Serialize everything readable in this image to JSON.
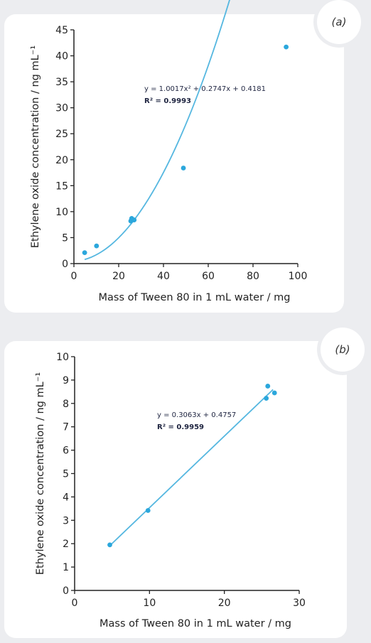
{
  "chart_data": [
    {
      "id": "a",
      "type": "scatter",
      "panel_label": "(a)",
      "xlabel": "Mass of Tween 80 in 1 mL water / mg",
      "ylabel": "Ethylene oxide concentration / ng mL⁻¹",
      "xlim": [
        0,
        100
      ],
      "ylim": [
        0,
        45
      ],
      "xticks": [
        0,
        20,
        40,
        60,
        80,
        100
      ],
      "yticks": [
        0,
        5,
        10,
        15,
        20,
        25,
        30,
        35,
        40,
        45
      ],
      "points": [
        {
          "x": 4.8,
          "y": 2.1
        },
        {
          "x": 10.1,
          "y": 3.4
        },
        {
          "x": 25.4,
          "y": 8.2
        },
        {
          "x": 25.8,
          "y": 8.7
        },
        {
          "x": 26.9,
          "y": 8.4
        },
        {
          "x": 48.9,
          "y": 18.4
        },
        {
          "x": 94.8,
          "y": 41.7
        }
      ],
      "fit": {
        "kind": "poly2",
        "coef": [
          1.0017,
          0.2747,
          0.4181
        ],
        "x_range": [
          4.8,
          94.8
        ],
        "x_scale": 0.1
      },
      "equation": "y = 1.0017x² + 0.2747x + 0.4181",
      "r2": "R² = 0.9993",
      "point_color": "#2ba7dc",
      "line_color": "#55b7e0"
    },
    {
      "id": "b",
      "type": "scatter",
      "panel_label": "(b)",
      "xlabel": "Mass of Tween 80 in 1 mL water / mg",
      "ylabel": "Ethylene oxide concentration / ng mL⁻¹",
      "xlim": [
        0,
        30
      ],
      "ylim": [
        0,
        10
      ],
      "xticks": [
        0,
        10,
        20,
        30
      ],
      "yticks": [
        0,
        1,
        2,
        3,
        4,
        5,
        6,
        7,
        8,
        9,
        10
      ],
      "points": [
        {
          "x": 4.7,
          "y": 1.95
        },
        {
          "x": 9.8,
          "y": 3.42
        },
        {
          "x": 25.6,
          "y": 8.22
        },
        {
          "x": 25.8,
          "y": 8.74
        },
        {
          "x": 26.7,
          "y": 8.45
        }
      ],
      "fit": {
        "kind": "linear",
        "coef": [
          0.3063,
          0.4757
        ],
        "x_range": [
          4.7,
          26.5
        ]
      },
      "equation": "y = 0.3063x + 0.4757",
      "r2": "R² = 0.9959",
      "point_color": "#2ba7dc",
      "line_color": "#55b7e0"
    }
  ]
}
